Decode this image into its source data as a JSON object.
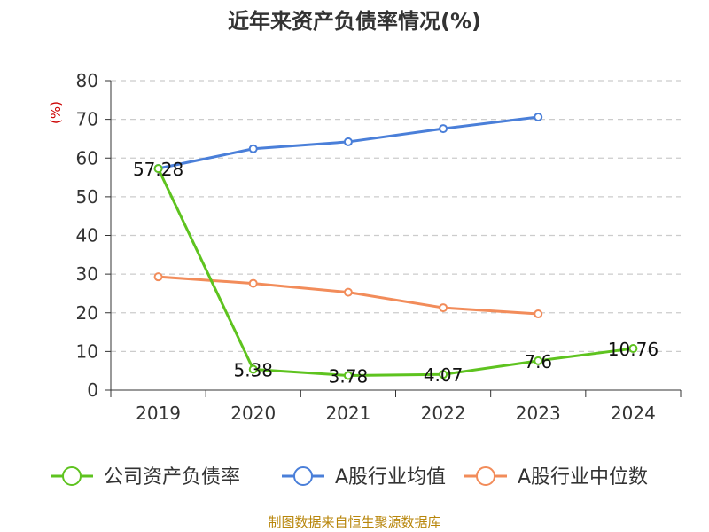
{
  "chart_data": {
    "type": "line",
    "title": "近年来资产负债率情况(%)",
    "ylabel": "(%)",
    "xlabel": "",
    "categories": [
      "2019",
      "2020",
      "2021",
      "2022",
      "2023",
      "2024"
    ],
    "ylim": [
      0,
      80
    ],
    "yticks": [
      0,
      10,
      20,
      30,
      40,
      50,
      60,
      70,
      80
    ],
    "grid": true,
    "legend_position": "bottom",
    "series": [
      {
        "name": "公司资产负债率",
        "color": "#5ec31f",
        "values": [
          57.28,
          5.38,
          3.78,
          4.07,
          7.6,
          10.76
        ],
        "labels": [
          "57.28",
          "5.38",
          "3.78",
          "4.07",
          "7.6",
          "10.76"
        ]
      },
      {
        "name": "A股行业均值",
        "color": "#4a7fd9",
        "values": [
          57.3,
          62.4,
          64.2,
          67.6,
          70.6,
          null
        ]
      },
      {
        "name": "A股行业中位数",
        "color": "#f28c5a",
        "values": [
          29.3,
          27.6,
          25.3,
          21.3,
          19.7,
          null
        ]
      }
    ]
  },
  "source": "制图数据来自恒生聚源数据库"
}
